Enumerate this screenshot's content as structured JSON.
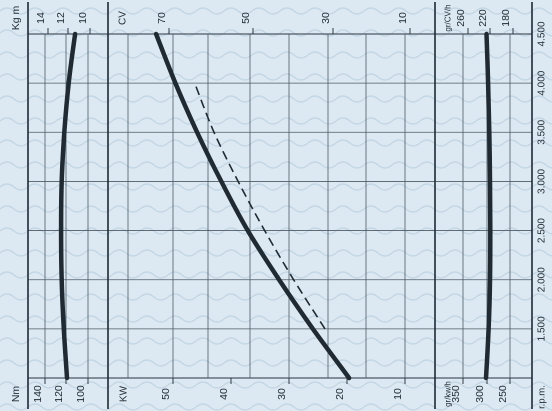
{
  "chart_data": {
    "type": "line",
    "orientation": "rotated-90-ccw",
    "grid": true,
    "rpm_axis": {
      "label": "r.p.m.",
      "range": [
        1000,
        4500
      ],
      "tick_labels": [
        "1.500",
        "2.000",
        "2.500",
        "3.000",
        "3.500",
        "4.000",
        "4.500"
      ]
    },
    "panels": {
      "torque": {
        "top_units": "Kg m",
        "top_ticks": [
          "14",
          "12",
          "10"
        ],
        "bottom_units": "Nm",
        "bottom_ticks": [
          "140",
          "120",
          "100"
        ]
      },
      "power": {
        "top_units": "CV",
        "top_ticks": [
          "70",
          "50",
          "30",
          "10"
        ],
        "bottom_units": "KW",
        "bottom_ticks": [
          "50",
          "40",
          "30",
          "20",
          "10"
        ]
      },
      "consumption": {
        "top_units": "gr/CV/h",
        "top_ticks": [
          "260",
          "220",
          "180"
        ],
        "bottom_units": "gr/kw/h",
        "bottom_ticks": [
          "350",
          "300",
          "250"
        ]
      }
    },
    "series": [
      {
        "panel": "torque",
        "x": [
          1000,
          1500,
          2000,
          2500,
          3000,
          3500,
          4000,
          4500
        ],
        "y": [
          119.5,
          122.5,
          124.5,
          125.0,
          124.5,
          122.0,
          118.0,
          112.0
        ]
      },
      {
        "panel": "power",
        "style": "solid",
        "x": [
          1000,
          1500,
          2000,
          2500,
          3000,
          3500,
          4000,
          4500
        ],
        "y": [
          13.5,
          21.0,
          28.0,
          34.5,
          40.0,
          45.0,
          49.5,
          53.5
        ]
      },
      {
        "panel": "power",
        "style": "dashed",
        "x": [
          1500,
          2000,
          2500,
          3000,
          3500,
          4000
        ],
        "y": [
          18.5,
          25.0,
          31.0,
          36.5,
          41.5,
          45.5
        ]
      },
      {
        "panel": "consumption",
        "x": [
          1000,
          1500,
          2000,
          2500,
          3000,
          3500,
          4000,
          4500
        ],
        "y": [
          301.0,
          295.5,
          292.5,
          292.0,
          292.5,
          294.0,
          296.5,
          300.0
        ]
      }
    ]
  }
}
